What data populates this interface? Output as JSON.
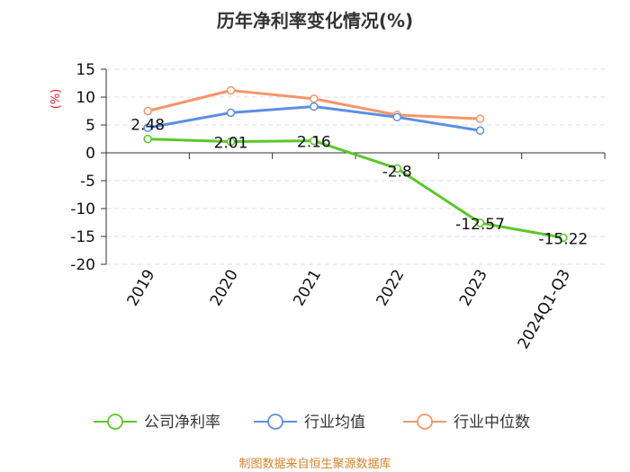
{
  "source": "制图数据来自恒生聚源数据库",
  "colors": {
    "company": "#5ac72a",
    "industry_avg": "#5b8fe3",
    "industry_median": "#f5956a",
    "unit": "#e0202a",
    "source": "#d4822a",
    "axis": "#333333",
    "grid": "#dddddd"
  },
  "chart_data": {
    "type": "line",
    "title": "历年净利率变化情况(%)",
    "unit_label": "(%)",
    "categories": [
      "2019",
      "2020",
      "2021",
      "2022",
      "2023",
      "2024Q1-Q3"
    ],
    "ylim": [
      -20,
      15
    ],
    "yticks": [
      15,
      10,
      5,
      0,
      -5,
      -10,
      -15,
      -20
    ],
    "grid": true,
    "legend_position": "bottom",
    "series": [
      {
        "name": "公司净利率",
        "color_key": "company",
        "values": [
          2.48,
          2.01,
          2.16,
          -2.8,
          -12.57,
          -15.22
        ],
        "labels": [
          "2.48",
          "2.01",
          "2.16",
          "-2.8",
          "-12.57",
          "-15.22"
        ]
      },
      {
        "name": "行业均值",
        "color_key": "industry_avg",
        "values": [
          4.5,
          7.2,
          8.3,
          6.4,
          4.0,
          null
        ]
      },
      {
        "name": "行业中位数",
        "color_key": "industry_median",
        "values": [
          7.5,
          11.2,
          9.7,
          6.8,
          6.1,
          null
        ]
      }
    ]
  }
}
